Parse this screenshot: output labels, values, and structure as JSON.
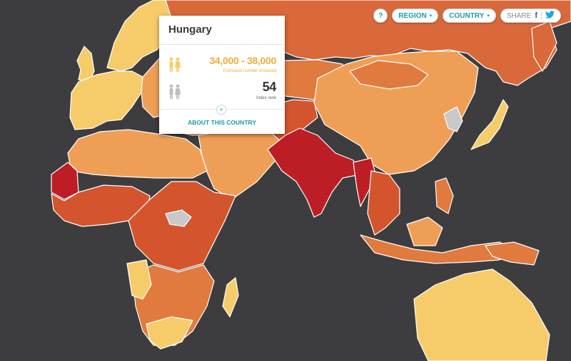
{
  "controls": {
    "help_label": "?",
    "region_label": "REGION",
    "country_label": "COUNTRY",
    "share_label": "SHARE",
    "facebook_label": "f",
    "caret": "▾"
  },
  "popup": {
    "title": "Hungary",
    "enslaved_value": "34,000 - 38,000",
    "enslaved_label": "Estimated number enslaved",
    "rank_value": "54",
    "rank_label": "Index rank",
    "plus": "+",
    "about_label": "ABOUT THIS COUNTRY"
  },
  "colors": {
    "ocean": "#3d3d3f",
    "lowest": "#f6cc6a",
    "low": "#ef9f55",
    "medium": "#e07a3e",
    "high": "#d4552d",
    "highest": "#bd1e26",
    "no_data": "#c9c9c9",
    "accent": "#1d9aa3"
  }
}
